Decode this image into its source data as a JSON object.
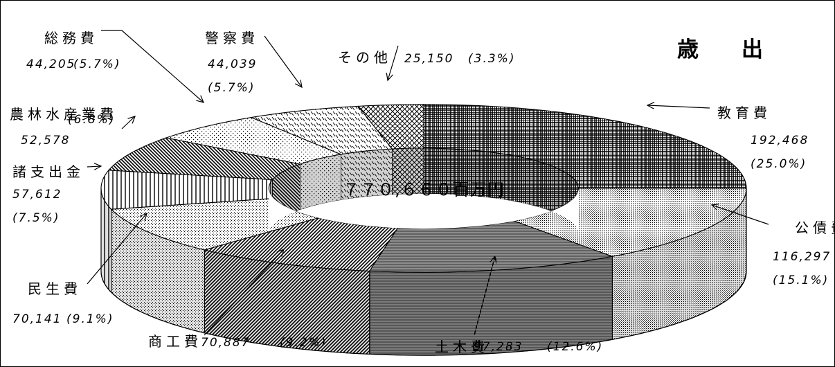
{
  "chart_data": {
    "type": "pie",
    "style": "3d-donut",
    "title": "歳　　出",
    "center_label": "７７０,６６０百万円",
    "total": 770660,
    "unit": "百万円",
    "slices": [
      {
        "name": "教育費",
        "value": 192468,
        "percent": "(25.0%)",
        "value_label": "192,468",
        "pattern": "dense-grid"
      },
      {
        "name": "公債費",
        "value": 116297,
        "percent": "(15.1%)",
        "value_label": "116,297",
        "pattern": "vertical-fine"
      },
      {
        "name": "土木費",
        "value": 97283,
        "percent": "(12.6%)",
        "value_label": "97,283",
        "pattern": "vertical-lines"
      },
      {
        "name": "商工費",
        "value": 70887,
        "percent": "(9.2%)",
        "value_label": "70,887",
        "pattern": "diag-dense"
      },
      {
        "name": "民生費",
        "value": 70141,
        "percent": "(9.1%)",
        "value_label": "70,141",
        "pattern": "dots"
      },
      {
        "name": "諸支出金",
        "value": 57612,
        "percent": "(7.5%)",
        "value_label": "57,612",
        "pattern": "vertical-wide"
      },
      {
        "name": "農林水産業費",
        "value": 52578,
        "percent": "(6.8%)",
        "value_label": "52,578",
        "pattern": "diag-back"
      },
      {
        "name": "総務費",
        "value": 44205,
        "percent": "(5.7%)",
        "value_label": "44,205",
        "pattern": "sparse-dots"
      },
      {
        "name": "警察費",
        "value": 44039,
        "percent": "(5.7%)",
        "value_label": "44,039",
        "pattern": "dashes"
      },
      {
        "name": "その他",
        "value": 25150,
        "percent": "(3.3%)",
        "value_label": "25,150",
        "pattern": "crosshatch"
      }
    ],
    "legend": "none",
    "grid": false
  }
}
